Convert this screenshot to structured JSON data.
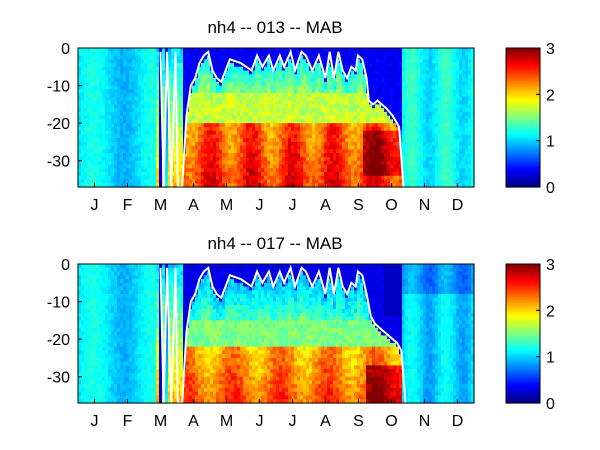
{
  "figure": {
    "months": [
      "J",
      "F",
      "M",
      "A",
      "M",
      "J",
      "J",
      "A",
      "S",
      "O",
      "N",
      "D"
    ],
    "depth_ticks": [
      "0",
      "-10",
      "-20",
      "-30"
    ],
    "colorbar_ticks": [
      "3",
      "2",
      "1",
      "0"
    ]
  },
  "chart_data": [
    {
      "type": "heatmap",
      "title": "nh4 -- 013 -- MAB",
      "xlabel": "",
      "ylabel": "",
      "x_categories": [
        "J",
        "F",
        "M",
        "A",
        "M",
        "J",
        "J",
        "A",
        "S",
        "O",
        "N",
        "D"
      ],
      "x_range_days": [
        0,
        365
      ],
      "ylim": [
        -37,
        0
      ],
      "yticks": [
        0,
        -10,
        -20,
        -30
      ],
      "color_range": [
        0,
        3
      ],
      "colorbar_ticks": [
        0,
        1,
        2,
        3
      ],
      "colormap": "jet",
      "white_line": {
        "description": "mixed layer depth",
        "day": [
          0,
          76,
          79,
          82,
          86,
          90,
          92,
          96,
          100,
          104,
          108,
          112,
          116,
          120,
          124,
          128,
          132,
          140,
          150,
          160,
          165,
          170,
          176,
          180,
          186,
          190,
          196,
          200,
          206,
          210,
          216,
          222,
          228,
          232,
          236,
          240,
          244,
          248,
          252,
          256,
          258,
          262,
          266,
          268,
          272,
          276,
          280,
          284,
          290,
          296,
          300,
          305
        ],
        "depth": [
          null,
          -1,
          -37,
          -1,
          -37,
          -1,
          -37,
          -37,
          -18,
          -10,
          -8,
          -4,
          -2,
          -1,
          -6,
          -8,
          -9,
          -3,
          -4,
          -6,
          -2,
          -5,
          -2,
          -6,
          -2,
          -5,
          -1,
          -6,
          -1,
          -2,
          -6,
          -2,
          -8,
          -1,
          -8,
          -1,
          -6,
          -8,
          -5,
          -6,
          -2,
          -3,
          -8,
          -14,
          -15,
          -14,
          -15,
          -16,
          -18,
          -21,
          -37,
          null
        ]
      },
      "field_summary": [
        {
          "period": "Jan-Mar",
          "depth": "all",
          "nh4": 1.0
        },
        {
          "period": "Apr-Oct",
          "depth": "0 to -10",
          "nh4": 1.0
        },
        {
          "period": "Apr-Oct",
          "depth": "-10 to -20",
          "nh4": 1.8
        },
        {
          "period": "Apr-Oct",
          "depth": "-20 to -37",
          "nh4": 2.5
        },
        {
          "period": "Oct",
          "depth": "-20 to -35",
          "nh4": 2.7
        },
        {
          "period": "Nov-Dec",
          "depth": "all",
          "nh4": 1.2
        }
      ]
    },
    {
      "type": "heatmap",
      "title": "nh4 -- 017 -- MAB",
      "xlabel": "",
      "ylabel": "",
      "x_categories": [
        "J",
        "F",
        "M",
        "A",
        "M",
        "J",
        "J",
        "A",
        "S",
        "O",
        "N",
        "D"
      ],
      "x_range_days": [
        0,
        365
      ],
      "ylim": [
        -37,
        0
      ],
      "yticks": [
        0,
        -10,
        -20,
        -30
      ],
      "color_range": [
        0,
        3
      ],
      "colorbar_ticks": [
        0,
        1,
        2,
        3
      ],
      "colormap": "jet",
      "white_line": {
        "description": "mixed layer depth",
        "day": [
          0,
          76,
          79,
          82,
          86,
          90,
          92,
          96,
          100,
          104,
          108,
          112,
          116,
          120,
          124,
          128,
          132,
          140,
          150,
          160,
          165,
          170,
          176,
          180,
          186,
          190,
          196,
          200,
          206,
          210,
          216,
          222,
          228,
          232,
          236,
          240,
          244,
          248,
          252,
          256,
          258,
          262,
          266,
          270,
          274,
          278,
          282,
          286,
          290,
          294,
          298,
          302,
          305
        ],
        "depth": [
          null,
          -1,
          -37,
          -1,
          -37,
          -1,
          -37,
          -37,
          -18,
          -10,
          -8,
          -4,
          -2,
          -1,
          -6,
          -8,
          -9,
          -3,
          -4,
          -6,
          -2,
          -5,
          -2,
          -6,
          -2,
          -5,
          -1,
          -6,
          -1,
          -2,
          -6,
          -2,
          -8,
          -1,
          -8,
          -1,
          -6,
          -8,
          -5,
          -6,
          -2,
          -3,
          -8,
          -14,
          -16,
          -17,
          -18,
          -19,
          -20,
          -21,
          -23,
          -37,
          null
        ]
      },
      "field_summary": [
        {
          "period": "Jan-Mar",
          "depth": "all",
          "nh4": 1.0
        },
        {
          "period": "Apr-Oct",
          "depth": "0 to -15",
          "nh4": 0.6
        },
        {
          "period": "Apr-Oct",
          "depth": "-15 to -22",
          "nh4": 1.5
        },
        {
          "period": "Apr-Oct",
          "depth": "-22 to -37",
          "nh4": 2.3
        },
        {
          "period": "Oct",
          "depth": "-27 to -37",
          "nh4": 2.7
        },
        {
          "period": "Nov-Dec",
          "depth": "all",
          "nh4": 1.0
        }
      ]
    }
  ]
}
